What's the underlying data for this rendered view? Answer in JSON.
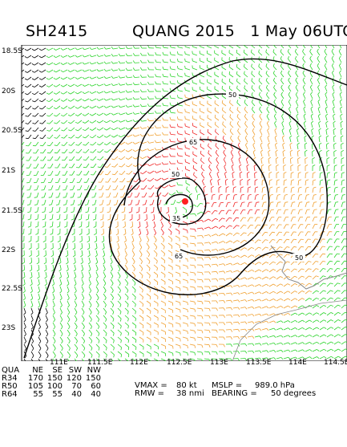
{
  "header": {
    "storm_id": "SH2415",
    "title": "QUANG 2015   1 May 06UTC"
  },
  "map": {
    "lat_labels": [
      "18.5S",
      "20S",
      "20.5S",
      "21S",
      "21.5S",
      "22S",
      "22.5S",
      "23S"
    ],
    "lon_labels": [
      "111E",
      "111.5E",
      "112E",
      "112.5E",
      "113E",
      "113.5E",
      "114E",
      "114.5E"
    ],
    "contour_labels": [
      "50",
      "65",
      "50",
      "35",
      "65",
      "50"
    ],
    "colors": {
      "green_barbs": "#2bd42b",
      "orange_barbs": "#f0a030",
      "red_barbs": "#f02828",
      "black_barbs": "#000000",
      "contour": "#000000",
      "center": "#ff2020",
      "coast": "#8a8a8a"
    }
  },
  "table": {
    "header": [
      "QUA",
      "NE",
      "SE",
      "SW",
      "NW"
    ],
    "rows": [
      [
        "R34",
        "170",
        "150",
        "120",
        "150"
      ],
      [
        "R50",
        "105",
        "100",
        "70",
        "60"
      ],
      [
        "R64",
        "55",
        "55",
        "40",
        "40"
      ]
    ]
  },
  "stats": {
    "vmax_label": "VMAX =",
    "vmax_value": "80 kt",
    "mslp_label": "MSLP =",
    "mslp_value": "989.0 hPa",
    "rmw_label": "RMW =",
    "rmw_value": "38 nmi",
    "bearing_label": "BEARING =",
    "bearing_value": "50 degrees"
  }
}
